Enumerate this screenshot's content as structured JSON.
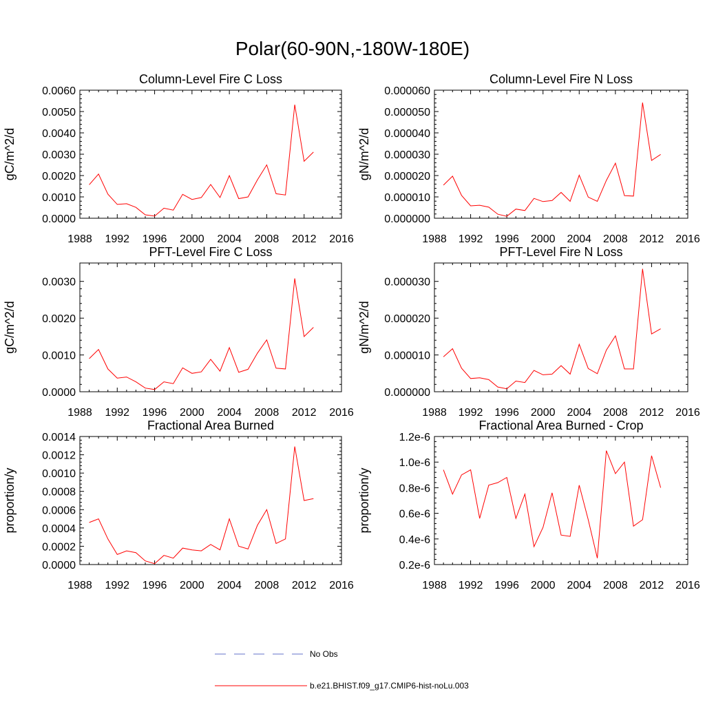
{
  "title": "Polar(60-90N,-180W-180E)",
  "legend": {
    "items": [
      {
        "label": "No Obs",
        "color": "#6070c8",
        "dash": true
      },
      {
        "label": "b.e21.BHIST.f09_g17.CMIP6-hist-noLu.003",
        "color": "#ff0000",
        "dash": false
      }
    ]
  },
  "chart_data": [
    {
      "type": "line",
      "title": "Column-Level Fire C Loss",
      "ylabel": "gC/m^2/d",
      "xlim": [
        1988,
        2016
      ],
      "ylim": [
        0,
        0.006
      ],
      "xticks": [
        "1988",
        "1992",
        "1996",
        "2000",
        "2004",
        "2008",
        "2012",
        "2016"
      ],
      "yticks": [
        "0.0000",
        "0.0010",
        "0.0020",
        "0.0030",
        "0.0040",
        "0.0050",
        "0.0060"
      ],
      "x": [
        1989,
        1990,
        1991,
        1992,
        1993,
        1994,
        1995,
        1996,
        1997,
        1998,
        1999,
        2000,
        2001,
        2002,
        2003,
        2004,
        2005,
        2006,
        2007,
        2008,
        2009,
        2010,
        2011,
        2012,
        2013
      ],
      "series": [
        {
          "name": "b.e21.BHIST.f09_g17.CMIP6-hist-noLu.003",
          "color": "#ff0000",
          "values": [
            0.00157,
            0.00207,
            0.00113,
            0.00065,
            0.00068,
            0.00051,
            0.00016,
            0.0001,
            0.00047,
            0.00038,
            0.00112,
            0.00088,
            0.00097,
            0.00158,
            0.00097,
            0.002,
            0.00092,
            0.001,
            0.0018,
            0.0025,
            0.00115,
            0.00109,
            0.00532,
            0.00267,
            0.0031
          ]
        }
      ]
    },
    {
      "type": "line",
      "title": "Column-Level Fire N Loss",
      "ylabel": "gN/m^2/d",
      "xlim": [
        1988,
        2016
      ],
      "ylim": [
        0,
        6e-05
      ],
      "xticks": [
        "1988",
        "1992",
        "1996",
        "2000",
        "2004",
        "2008",
        "2012",
        "2016"
      ],
      "yticks": [
        "0.000000",
        "0.000010",
        "0.000020",
        "0.000030",
        "0.000040",
        "0.000050",
        "0.000060"
      ],
      "x": [
        1989,
        1990,
        1991,
        1992,
        1993,
        1994,
        1995,
        1996,
        1997,
        1998,
        1999,
        2000,
        2001,
        2002,
        2003,
        2004,
        2005,
        2006,
        2007,
        2008,
        2009,
        2010,
        2011,
        2012,
        2013
      ],
      "series": [
        {
          "name": "b.e21.BHIST.f09_g17.CMIP6-hist-noLu.003",
          "color": "#ff0000",
          "values": [
            1.55e-05,
            1.97e-05,
            1.07e-05,
            5.8e-06,
            6.1e-06,
            5.2e-06,
            1.9e-06,
            9e-07,
            4.3e-06,
            3.6e-06,
            9.3e-06,
            7.8e-06,
            8.3e-06,
            1.21e-05,
            7.9e-06,
            2.02e-05,
            9.9e-06,
            7.9e-06,
            1.77e-05,
            2.58e-05,
            1.06e-05,
            1.04e-05,
            5.42e-05,
            2.71e-05,
            2.99e-05
          ]
        }
      ]
    },
    {
      "type": "line",
      "title": "PFT-Level Fire C Loss",
      "ylabel": "gC/m^2/d",
      "xlim": [
        1988,
        2016
      ],
      "ylim": [
        0,
        0.0035
      ],
      "xticks": [
        "1988",
        "1992",
        "1996",
        "2000",
        "2004",
        "2008",
        "2012",
        "2016"
      ],
      "yticks": [
        "0.0000",
        "0.0010",
        "0.0020",
        "0.0030"
      ],
      "x": [
        1989,
        1990,
        1991,
        1992,
        1993,
        1994,
        1995,
        1996,
        1997,
        1998,
        1999,
        2000,
        2001,
        2002,
        2003,
        2004,
        2005,
        2006,
        2007,
        2008,
        2009,
        2010,
        2011,
        2012,
        2013
      ],
      "series": [
        {
          "name": "b.e21.BHIST.f09_g17.CMIP6-hist-noLu.003",
          "color": "#ff0000",
          "values": [
            0.0009,
            0.00115,
            0.00062,
            0.00037,
            0.0004,
            0.00027,
            0.0001,
            6e-05,
            0.00027,
            0.00022,
            0.00065,
            0.0005,
            0.00054,
            0.00088,
            0.00056,
            0.0012,
            0.00053,
            0.00061,
            0.00105,
            0.00141,
            0.00064,
            0.00062,
            0.00308,
            0.0015,
            0.00175
          ]
        }
      ]
    },
    {
      "type": "line",
      "title": "PFT-Level Fire N Loss",
      "ylabel": "gN/m^2/d",
      "xlim": [
        1988,
        2016
      ],
      "ylim": [
        0,
        3.5e-05
      ],
      "xticks": [
        "1988",
        "1992",
        "1996",
        "2000",
        "2004",
        "2008",
        "2012",
        "2016"
      ],
      "yticks": [
        "0.000000",
        "0.000010",
        "0.000020",
        "0.000030"
      ],
      "x": [
        1989,
        1990,
        1991,
        1992,
        1993,
        1994,
        1995,
        1996,
        1997,
        1998,
        1999,
        2000,
        2001,
        2002,
        2003,
        2004,
        2005,
        2006,
        2007,
        2008,
        2009,
        2010,
        2011,
        2012,
        2013
      ],
      "series": [
        {
          "name": "b.e21.BHIST.f09_g17.CMIP6-hist-noLu.003",
          "color": "#ff0000",
          "values": [
            9.5e-06,
            1.17e-05,
            6.4e-06,
            3.6e-06,
            3.8e-06,
            3.3e-06,
            1.3e-06,
            8e-07,
            2.9e-06,
            2.5e-06,
            5.8e-06,
            4.6e-06,
            4.8e-06,
            7.1e-06,
            4.8e-06,
            1.29e-05,
            6.3e-06,
            4.9e-06,
            1.13e-05,
            1.52e-05,
            6.2e-06,
            6.2e-06,
            3.34e-05,
            1.57e-05,
            1.71e-05
          ]
        }
      ]
    },
    {
      "type": "line",
      "title": "Fractional Area Burned",
      "ylabel": "proportion/y",
      "xlim": [
        1988,
        2016
      ],
      "ylim": [
        0,
        0.0014
      ],
      "xticks": [
        "1988",
        "1992",
        "1996",
        "2000",
        "2004",
        "2008",
        "2012",
        "2016"
      ],
      "yticks": [
        "0.0000",
        "0.0002",
        "0.0004",
        "0.0006",
        "0.0008",
        "0.0010",
        "0.0012",
        "0.0014"
      ],
      "x": [
        1989,
        1990,
        1991,
        1992,
        1993,
        1994,
        1995,
        1996,
        1997,
        1998,
        1999,
        2000,
        2001,
        2002,
        2003,
        2004,
        2005,
        2006,
        2007,
        2008,
        2009,
        2010,
        2011,
        2012,
        2013
      ],
      "series": [
        {
          "name": "b.e21.BHIST.f09_g17.CMIP6-hist-noLu.003",
          "color": "#ff0000",
          "values": [
            0.00046,
            0.0005,
            0.00028,
            0.00011,
            0.00015,
            0.00013,
            4e-05,
            1e-05,
            0.0001,
            7e-05,
            0.00018,
            0.00016,
            0.00015,
            0.00022,
            0.00016,
            0.0005,
            0.0002,
            0.00017,
            0.00043,
            0.0006,
            0.00023,
            0.00028,
            0.00129,
            0.0007,
            0.00072
          ]
        }
      ]
    },
    {
      "type": "line",
      "title": "Fractional Area Burned - Crop",
      "ylabel": "proportion/y",
      "xlim": [
        1988,
        2016
      ],
      "ylim": [
        2e-07,
        1.2e-06
      ],
      "xticks": [
        "1988",
        "1992",
        "1996",
        "2000",
        "2004",
        "2008",
        "2012",
        "2016"
      ],
      "yticks": [
        "0.2e-6",
        "0.4e-6",
        "0.6e-6",
        "0.8e-6",
        "1.0e-6",
        "1.2e-6"
      ],
      "x": [
        1989,
        1990,
        1991,
        1992,
        1993,
        1994,
        1995,
        1996,
        1997,
        1998,
        1999,
        2000,
        2001,
        2002,
        2003,
        2004,
        2005,
        2006,
        2007,
        2008,
        2009,
        2010,
        2011,
        2012,
        2013
      ],
      "series": [
        {
          "name": "b.e21.BHIST.f09_g17.CMIP6-hist-noLu.003",
          "color": "#ff0000",
          "values": [
            9.4e-07,
            7.5e-07,
            9e-07,
            9.4e-07,
            5.6e-07,
            8.2e-07,
            8.4e-07,
            8.8e-07,
            5.6e-07,
            7.5e-07,
            3.4e-07,
            4.9e-07,
            7.6e-07,
            4.3e-07,
            4.2e-07,
            8.2e-07,
            5.5e-07,
            2.5e-07,
            1.09e-06,
            9.1e-07,
            1e-06,
            5e-07,
            5.5e-07,
            1.05e-06,
            8e-07
          ]
        }
      ]
    }
  ]
}
